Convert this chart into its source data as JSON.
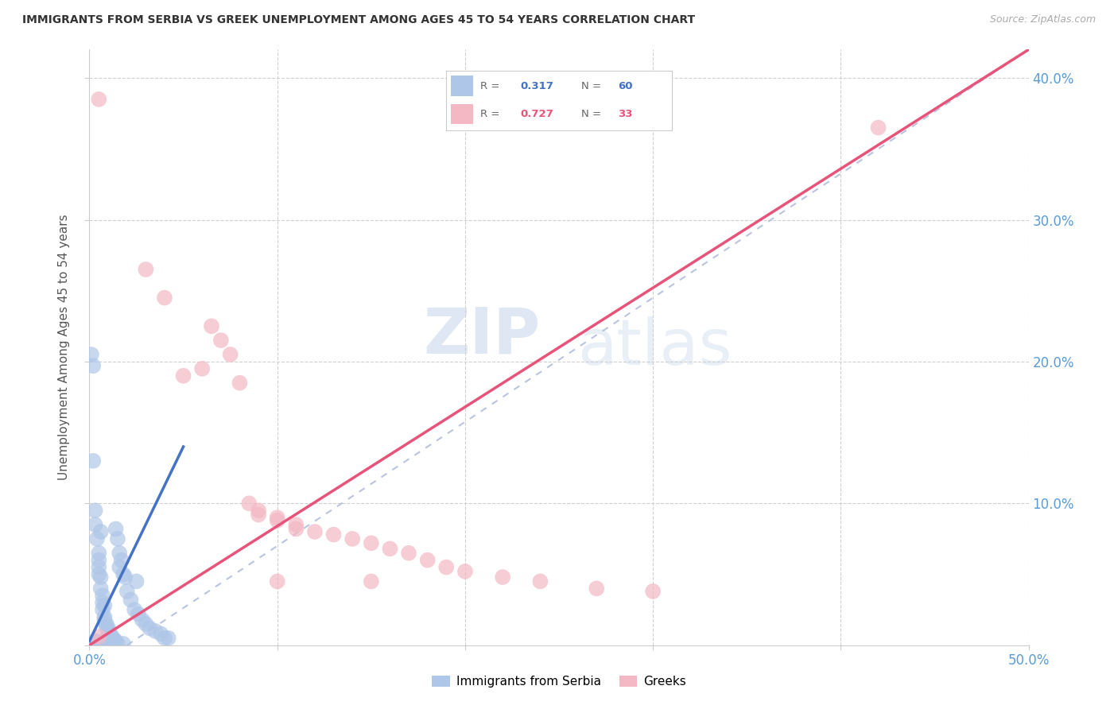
{
  "title": "IMMIGRANTS FROM SERBIA VS GREEK UNEMPLOYMENT AMONG AGES 45 TO 54 YEARS CORRELATION CHART",
  "source": "Source: ZipAtlas.com",
  "ylabel": "Unemployment Among Ages 45 to 54 years",
  "xlim": [
    0.0,
    0.5
  ],
  "ylim": [
    0.0,
    0.42
  ],
  "xticks": [
    0.0,
    0.1,
    0.2,
    0.3,
    0.4,
    0.5
  ],
  "yticks": [
    0.1,
    0.2,
    0.3,
    0.4
  ],
  "xtick_labels_left": "0.0%",
  "xtick_labels_right": "50.0%",
  "ytick_labels": [
    "10.0%",
    "20.0%",
    "30.0%",
    "40.0%"
  ],
  "r_serbia": 0.317,
  "n_serbia": 60,
  "r_greeks": 0.727,
  "n_greeks": 33,
  "serbia_color": "#aec6e8",
  "greeks_color": "#f4b8c4",
  "serbia_line_color": "#4472c4",
  "greeks_line_color": "#e8537a",
  "watermark_zip": "ZIP",
  "watermark_atlas": "atlas",
  "serbia_scatter": [
    [
      0.001,
      0.205
    ],
    [
      0.002,
      0.197
    ],
    [
      0.002,
      0.13
    ],
    [
      0.003,
      0.095
    ],
    [
      0.003,
      0.085
    ],
    [
      0.004,
      0.075
    ],
    [
      0.005,
      0.065
    ],
    [
      0.005,
      0.06
    ],
    [
      0.005,
      0.055
    ],
    [
      0.005,
      0.05
    ],
    [
      0.006,
      0.08
    ],
    [
      0.006,
      0.048
    ],
    [
      0.006,
      0.04
    ],
    [
      0.007,
      0.035
    ],
    [
      0.007,
      0.03
    ],
    [
      0.007,
      0.025
    ],
    [
      0.008,
      0.028
    ],
    [
      0.008,
      0.02
    ],
    [
      0.008,
      0.018
    ],
    [
      0.009,
      0.015
    ],
    [
      0.009,
      0.013
    ],
    [
      0.01,
      0.012
    ],
    [
      0.01,
      0.01
    ],
    [
      0.01,
      0.008
    ],
    [
      0.011,
      0.008
    ],
    [
      0.012,
      0.006
    ],
    [
      0.012,
      0.004
    ],
    [
      0.013,
      0.004
    ],
    [
      0.013,
      0.003
    ],
    [
      0.014,
      0.003
    ],
    [
      0.014,
      0.082
    ],
    [
      0.015,
      0.075
    ],
    [
      0.016,
      0.065
    ],
    [
      0.016,
      0.055
    ],
    [
      0.017,
      0.06
    ],
    [
      0.018,
      0.05
    ],
    [
      0.019,
      0.048
    ],
    [
      0.02,
      0.038
    ],
    [
      0.022,
      0.032
    ],
    [
      0.024,
      0.025
    ],
    [
      0.026,
      0.022
    ],
    [
      0.028,
      0.018
    ],
    [
      0.03,
      0.015
    ],
    [
      0.032,
      0.012
    ],
    [
      0.035,
      0.01
    ],
    [
      0.038,
      0.008
    ],
    [
      0.04,
      0.005
    ],
    [
      0.042,
      0.005
    ],
    [
      0.003,
      0.003
    ],
    [
      0.004,
      0.002
    ],
    [
      0.005,
      0.002
    ],
    [
      0.006,
      0.002
    ],
    [
      0.007,
      0.002
    ],
    [
      0.008,
      0.002
    ],
    [
      0.009,
      0.001
    ],
    [
      0.01,
      0.001
    ],
    [
      0.012,
      0.001
    ],
    [
      0.015,
      0.001
    ],
    [
      0.018,
      0.001
    ],
    [
      0.025,
      0.045
    ]
  ],
  "greeks_scatter": [
    [
      0.005,
      0.385
    ],
    [
      0.03,
      0.265
    ],
    [
      0.04,
      0.245
    ],
    [
      0.05,
      0.19
    ],
    [
      0.06,
      0.195
    ],
    [
      0.065,
      0.225
    ],
    [
      0.07,
      0.215
    ],
    [
      0.075,
      0.205
    ],
    [
      0.08,
      0.185
    ],
    [
      0.085,
      0.1
    ],
    [
      0.09,
      0.095
    ],
    [
      0.09,
      0.092
    ],
    [
      0.1,
      0.09
    ],
    [
      0.1,
      0.088
    ],
    [
      0.11,
      0.085
    ],
    [
      0.11,
      0.082
    ],
    [
      0.12,
      0.08
    ],
    [
      0.13,
      0.078
    ],
    [
      0.14,
      0.075
    ],
    [
      0.15,
      0.072
    ],
    [
      0.16,
      0.068
    ],
    [
      0.17,
      0.065
    ],
    [
      0.18,
      0.06
    ],
    [
      0.19,
      0.055
    ],
    [
      0.2,
      0.052
    ],
    [
      0.22,
      0.048
    ],
    [
      0.24,
      0.045
    ],
    [
      0.27,
      0.04
    ],
    [
      0.3,
      0.038
    ],
    [
      0.005,
      0.006
    ],
    [
      0.1,
      0.045
    ],
    [
      0.42,
      0.365
    ],
    [
      0.15,
      0.045
    ]
  ],
  "serbia_line": [
    [
      0.0,
      0.003
    ],
    [
      0.05,
      0.145
    ]
  ],
  "greeks_line": [
    [
      0.0,
      0.0
    ],
    [
      0.5,
      0.42
    ]
  ],
  "dash_line": [
    [
      0.0,
      0.0
    ],
    [
      0.5,
      0.42
    ]
  ]
}
